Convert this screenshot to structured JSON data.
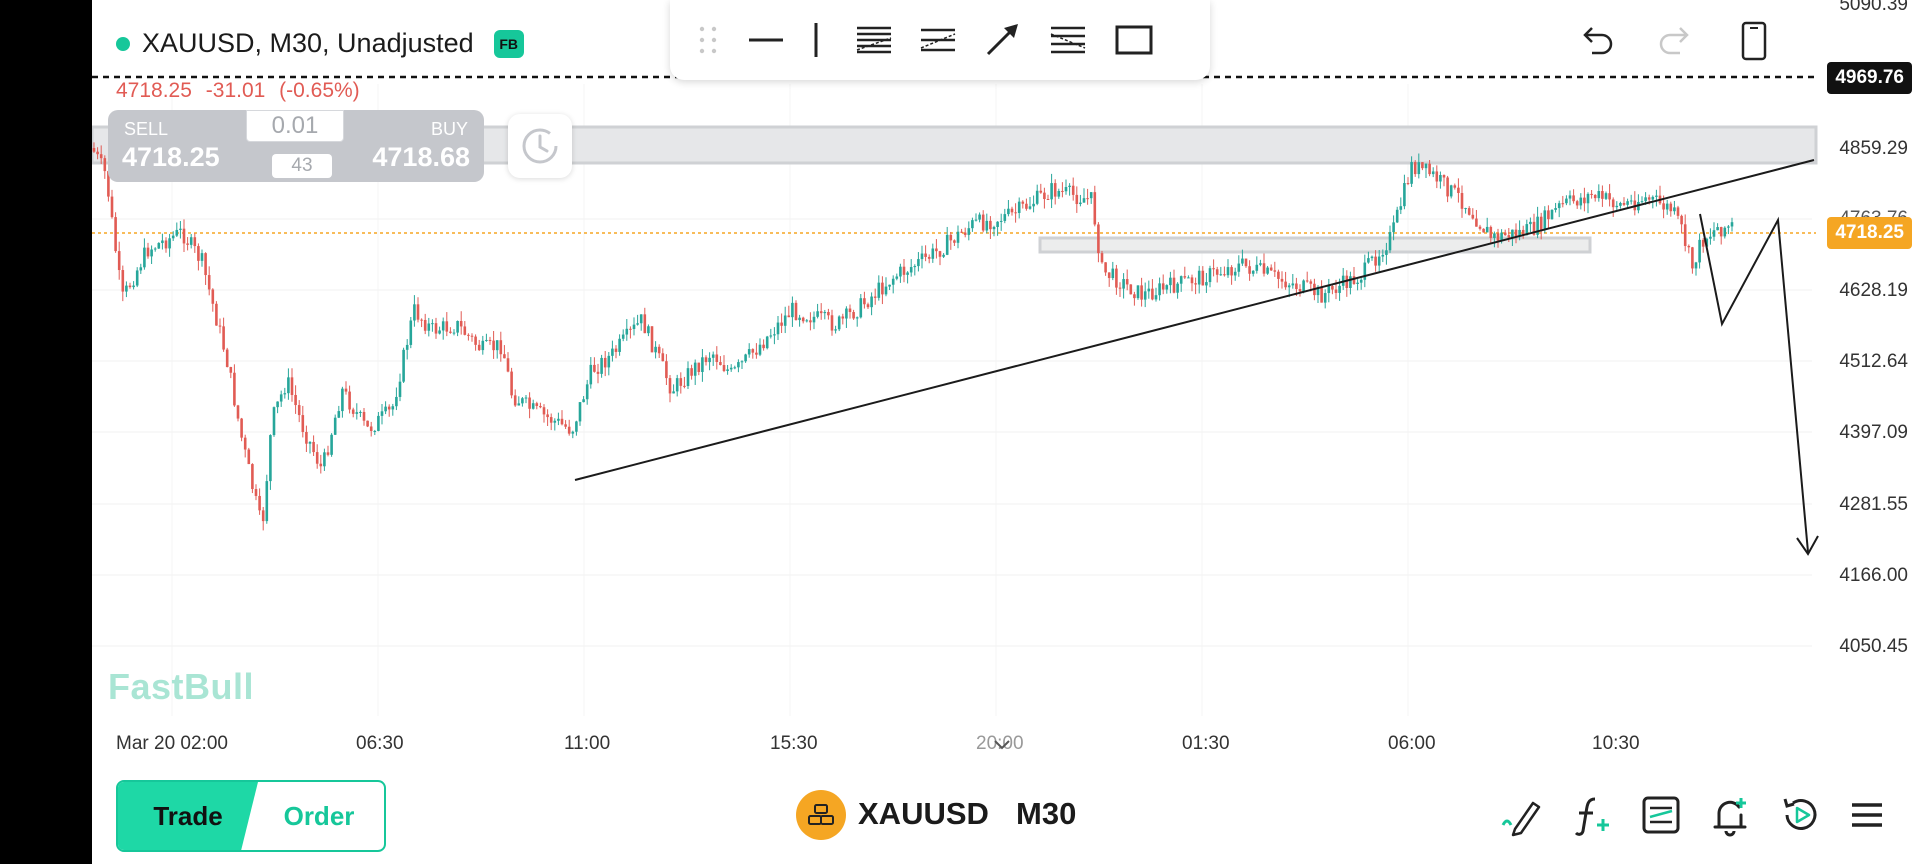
{
  "header": {
    "symbol_line": "XAUUSD, M30, Unadjusted",
    "badge": "FB",
    "last_price": "4718.25",
    "change": "-31.01 (-0.65%)"
  },
  "trade_panel": {
    "sell_label": "SELL",
    "sell_price": "4718.25",
    "buy_label": "BUY",
    "buy_price": "4718.68",
    "lot": "0.01",
    "spread": "43"
  },
  "price_axis": {
    "ticks": [
      "5090.39",
      "4859.29",
      "4628.19",
      "4512.64",
      "4397.09",
      "4281.55",
      "4166.00",
      "4050.45"
    ],
    "partial_tick": "4763.76",
    "alert_tag": "4969.76",
    "current_tag": "4718.25"
  },
  "time_axis": {
    "ticks": [
      "Mar 20 02:00",
      "06:30",
      "11:00",
      "15:30",
      "20:00",
      "01:30",
      "06:00",
      "10:30"
    ]
  },
  "watermark": "FastBull",
  "bottom_bar": {
    "trade_label": "Trade",
    "order_label": "Order",
    "symbol": "XAUUSD",
    "timeframe": "M30"
  },
  "colors": {
    "up": "#26a69a",
    "down": "#e15b54",
    "accent": "#16c79a",
    "current_price": "#f5a623"
  },
  "icons": {
    "toolbar": [
      "drag-handle-icon",
      "horizontal-line-icon",
      "vertical-line-icon",
      "parallel-channel-icon",
      "trend-channel-icon",
      "arrow-icon",
      "fib-icon",
      "rectangle-icon"
    ],
    "top_right": [
      "undo-icon",
      "redo-icon",
      "rotate-device-icon"
    ],
    "bottom": [
      "drawing-tools-icon",
      "indicators-icon",
      "chart-settings-icon",
      "price-alert-icon",
      "replay-icon",
      "menu-icon"
    ]
  }
}
